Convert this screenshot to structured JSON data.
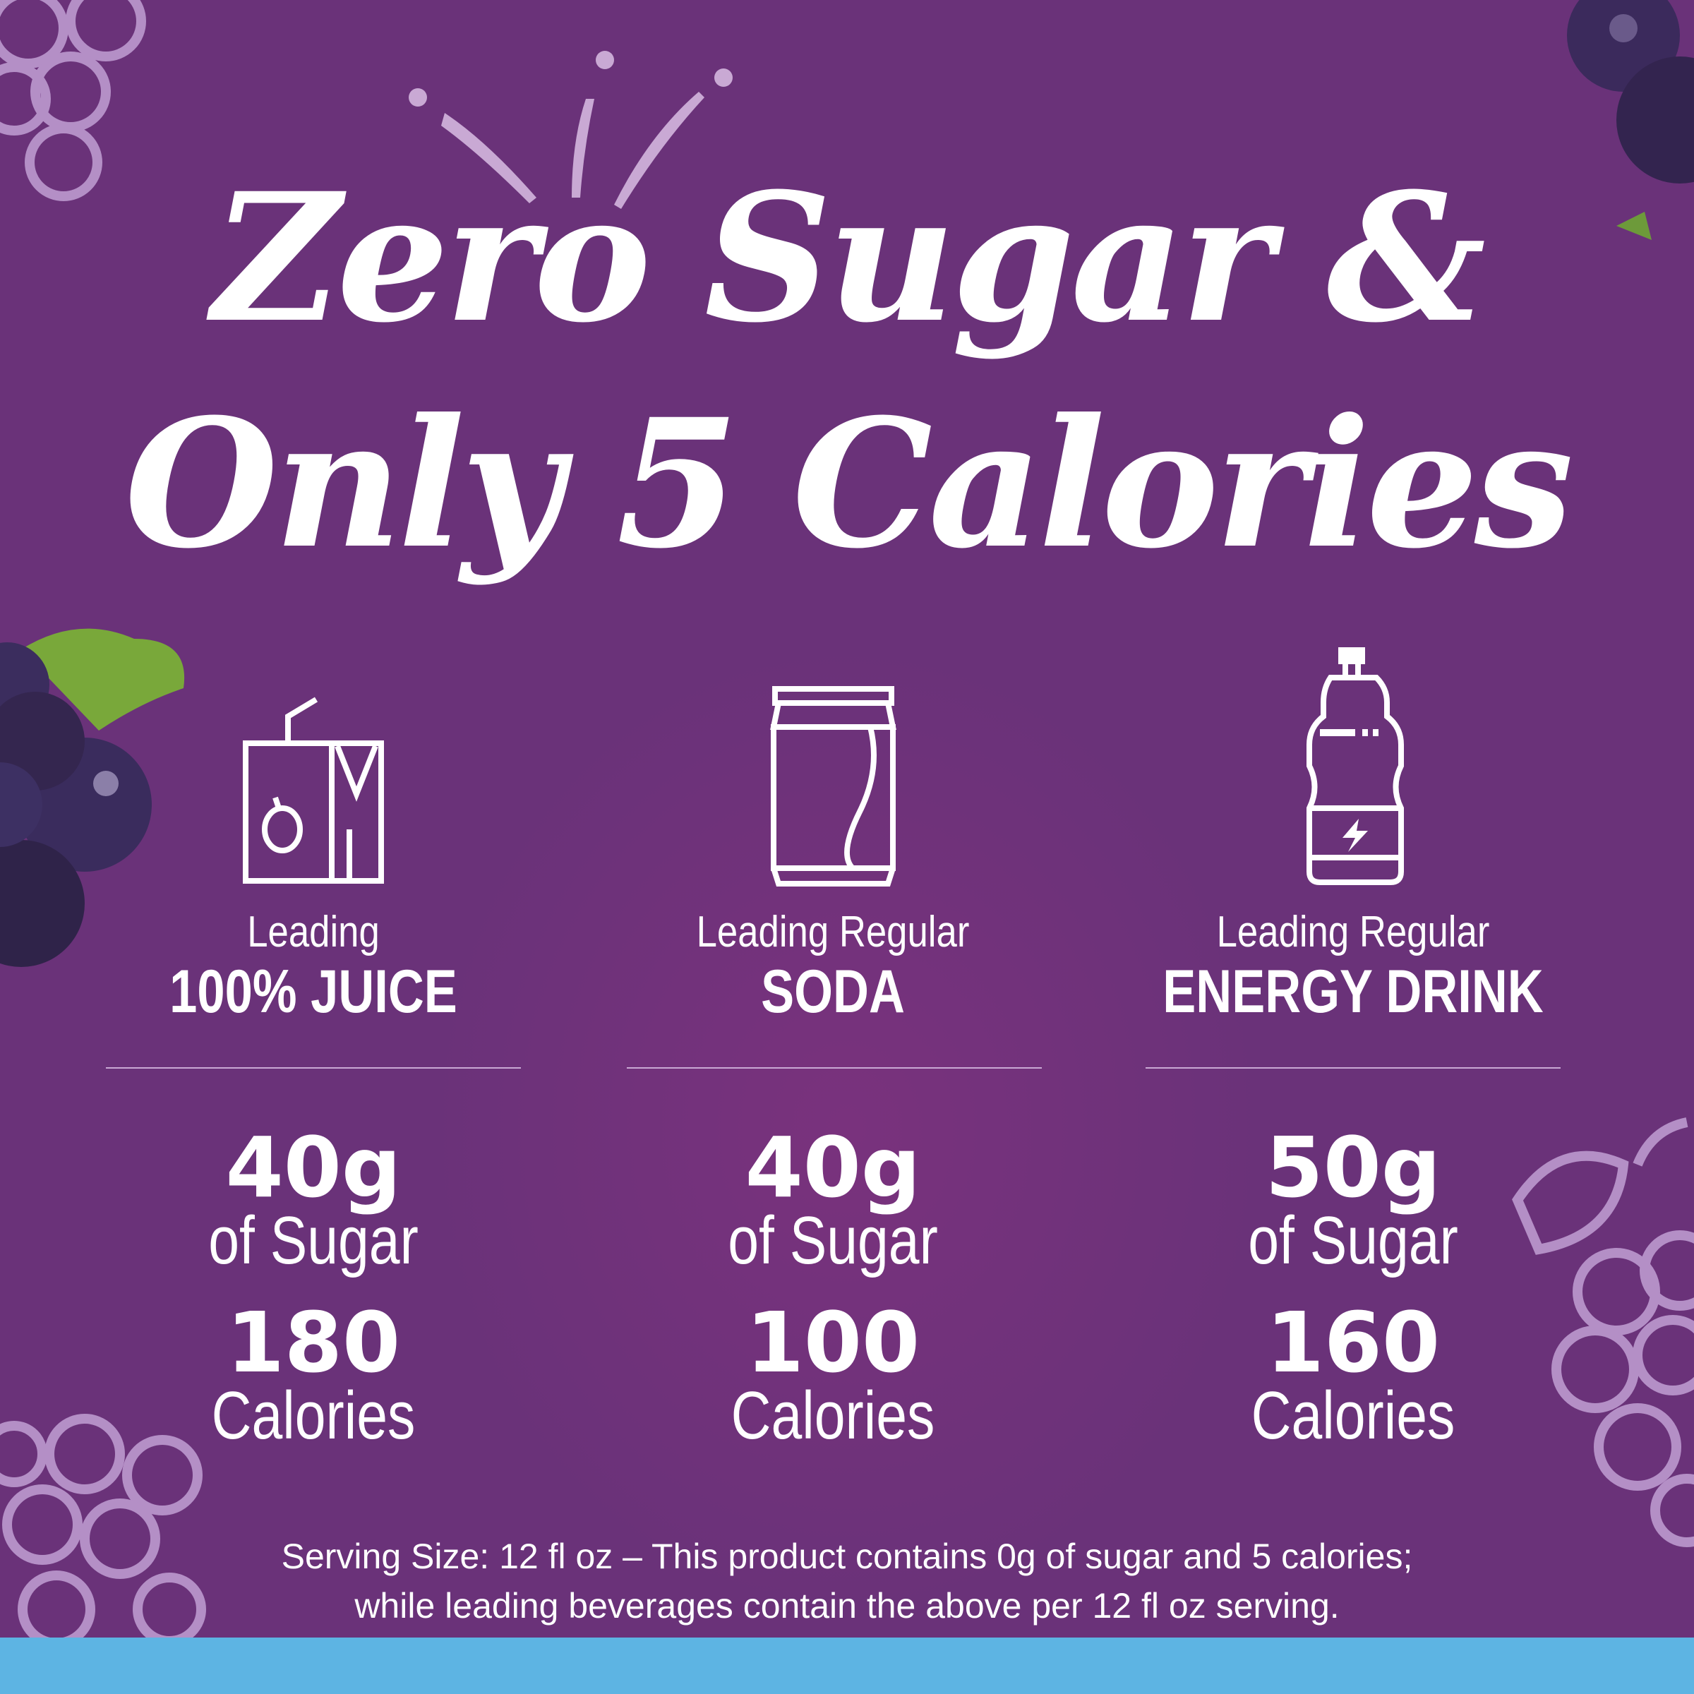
{
  "headline": {
    "line1": "Zero Sugar &",
    "line2": "Only 5 Calories"
  },
  "columns": [
    {
      "icon": "juice-box-icon",
      "lead": "Leading",
      "kind": "100% JUICE",
      "sugar": "40g",
      "sugar_label": "of Sugar",
      "calories": "180",
      "calories_label": "Calories"
    },
    {
      "icon": "soda-can-icon",
      "lead": "Leading Regular",
      "kind": "SODA",
      "sugar": "40g",
      "sugar_label": "of Sugar",
      "calories": "100",
      "calories_label": "Calories"
    },
    {
      "icon": "energy-drink-bottle-icon",
      "lead": "Leading Regular",
      "kind": "ENERGY DRINK",
      "sugar": "50g",
      "sugar_label": "of Sugar",
      "calories": "160",
      "calories_label": "Calories"
    }
  ],
  "footer": {
    "line1": "Serving Size: 12 fl oz – This product contains 0g of sugar and 5 calories;",
    "line2": "while leading beverages contain the above per 12 fl oz serving."
  },
  "colors": {
    "background": "#6a3279",
    "bottom_bar": "#5db4e3",
    "grape_outline": "#b48fc6",
    "text": "#ffffff"
  }
}
